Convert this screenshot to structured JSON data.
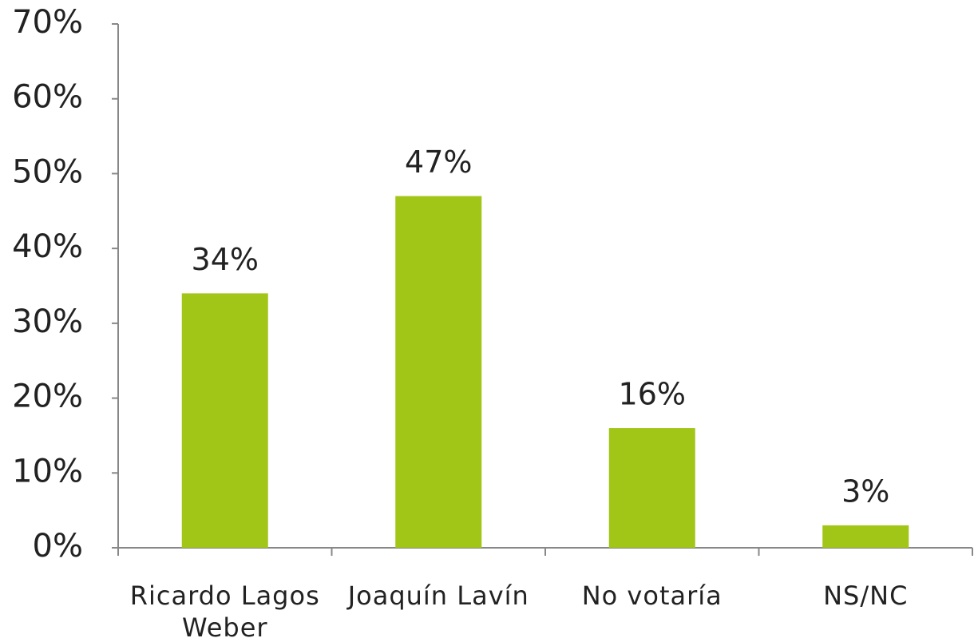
{
  "chart_data": {
    "type": "bar",
    "categories": [
      "Ricardo Lagos Weber",
      "Joaquín Lavín",
      "No votaría",
      "NS/NC"
    ],
    "values": [
      34,
      47,
      16,
      3
    ],
    "value_labels": [
      "34%",
      "47%",
      "16%",
      "3%"
    ],
    "color": "#a2c617",
    "ylim": [
      0,
      70
    ],
    "yticks": [
      {
        "value": 0,
        "label": "0%"
      },
      {
        "value": 10,
        "label": "10%"
      },
      {
        "value": 20,
        "label": "20%"
      },
      {
        "value": 30,
        "label": "30%"
      },
      {
        "value": 40,
        "label": "40%"
      },
      {
        "value": 50,
        "label": "50%"
      },
      {
        "value": 60,
        "label": "60%"
      },
      {
        "value": 70,
        "label": "70%"
      }
    ],
    "grid": false
  }
}
